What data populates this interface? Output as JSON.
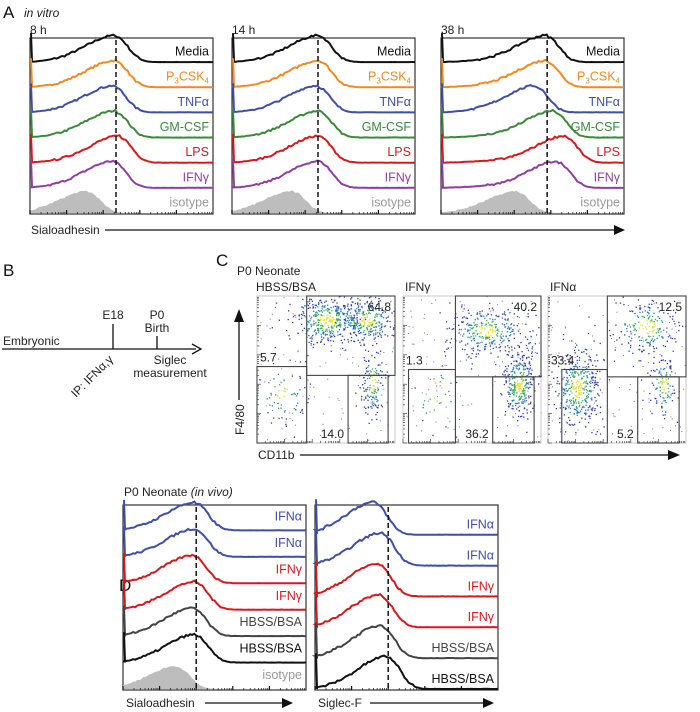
{
  "panels": {
    "A": "A",
    "B": "B",
    "C": "C",
    "D": "D"
  },
  "panel_a": {
    "subtitle": "in vitro",
    "x_axis_label": "Sialoadhesin",
    "time_points": [
      "8 h",
      "14 h",
      "38 h"
    ],
    "conditions": [
      {
        "name": "Media",
        "color": "#111111",
        "label": "Media"
      },
      {
        "name": "P3CSK4",
        "color": "#f08a24",
        "label_main": "P",
        "label_sub1": "3",
        "label_mid": "CSK",
        "label_sub2": "4"
      },
      {
        "name": "TNFα",
        "color": "#3f4fa8",
        "label": "TNFα"
      },
      {
        "name": "GM-CSF",
        "color": "#3a8a3a",
        "label": "GM-CSF"
      },
      {
        "name": "LPS",
        "color": "#d7191c",
        "label": "LPS"
      },
      {
        "name": "IFNγ",
        "color": "#8e3fa0",
        "label": "IFNγ"
      },
      {
        "name": "isotype",
        "color": "#bdbdbd",
        "label": "isotype"
      }
    ]
  },
  "panel_b": {
    "start_label": "Embryonic",
    "e18": "E18",
    "p0": "P0",
    "birth": "Birth",
    "treatment": "IP: IFNα,γ",
    "measure1": "Siglec",
    "measure2": "measurement"
  },
  "panel_c": {
    "title": "P0 Neonate",
    "y_label": "F4/80",
    "x_label": "CD11b",
    "plots": [
      {
        "condition": "HBSS/BSA",
        "color": "#111111",
        "gate_high": "64.8",
        "gate_low_left": "5.7",
        "gate_low_right": "14.0"
      },
      {
        "condition": "IFNγ",
        "color": "#d7191c",
        "gate_high": "40.2",
        "gate_low_left": "1.3",
        "gate_low_right": "36.2"
      },
      {
        "condition": "IFNα",
        "color": "#3f4fa8",
        "gate_high": "12.5",
        "gate_low_left": "33.4",
        "gate_low_right": "5.2"
      }
    ]
  },
  "panel_d": {
    "title": "P0 Neonate",
    "title_italic": "(in vivo)",
    "x_labels": [
      "Sialoadhesin",
      "Siglec-F"
    ],
    "rows": [
      {
        "label": "IFNα",
        "color": "#3f4fa8"
      },
      {
        "label": "IFNα",
        "color": "#3f4fa8"
      },
      {
        "label": "IFNγ",
        "color": "#d7191c"
      },
      {
        "label": "IFNγ",
        "color": "#d7191c"
      },
      {
        "label": "HBSS/BSA",
        "color": "#444444"
      },
      {
        "label": "HBSS/BSA",
        "color": "#111111"
      },
      {
        "label": "isotype",
        "color": "#bdbdbd"
      }
    ]
  },
  "chart_data": [
    {
      "type": "histogram",
      "title": "8 h",
      "xlabel": "Sialoadhesin",
      "x_scale": "log",
      "x_range_decades": [
        0,
        5
      ],
      "marker_decade": 2.35,
      "series": [
        {
          "name": "Media",
          "peak": 2.35
        },
        {
          "name": "P3CSK4",
          "peak": 2.35
        },
        {
          "name": "TNFα",
          "peak": 2.3
        },
        {
          "name": "GM-CSF",
          "peak": 2.35
        },
        {
          "name": "LPS",
          "peak": 2.45
        },
        {
          "name": "IFNγ",
          "peak": 2.3
        },
        {
          "name": "isotype",
          "peak": 1.6
        }
      ]
    },
    {
      "type": "histogram",
      "title": "14 h",
      "xlabel": "Sialoadhesin",
      "x_scale": "log",
      "x_range_decades": [
        0,
        5
      ],
      "marker_decade": 2.35,
      "series": [
        {
          "name": "Media",
          "peak": 2.4
        },
        {
          "name": "P3CSK4",
          "peak": 2.4
        },
        {
          "name": "TNFα",
          "peak": 2.35
        },
        {
          "name": "GM-CSF",
          "peak": 2.4
        },
        {
          "name": "LPS",
          "peak": 2.4
        },
        {
          "name": "IFNγ",
          "peak": 2.4
        },
        {
          "name": "isotype",
          "peak": 1.7
        }
      ]
    },
    {
      "type": "histogram",
      "title": "38 h",
      "xlabel": "Sialoadhesin",
      "x_scale": "log",
      "x_range_decades": [
        0,
        5
      ],
      "marker_decade": 2.9,
      "series": [
        {
          "name": "Media",
          "peak": 2.9
        },
        {
          "name": "P3CSK4",
          "peak": 2.9
        },
        {
          "name": "TNFα",
          "peak": 2.6
        },
        {
          "name": "GM-CSF",
          "peak": 3.1
        },
        {
          "name": "LPS",
          "peak": 3.4
        },
        {
          "name": "IFNγ",
          "peak": 3.2
        },
        {
          "name": "isotype",
          "peak": 2.1
        }
      ]
    },
    {
      "type": "histogram",
      "title": "P0 Neonate (in vivo)",
      "xlabel": "Sialoadhesin",
      "x_scale": "log",
      "x_range_decades": [
        0,
        5
      ],
      "marker_decade": 2.0,
      "series": [
        {
          "name": "IFNα",
          "peak": 2.0
        },
        {
          "name": "IFNα",
          "peak": 2.0
        },
        {
          "name": "IFNγ",
          "peak": 1.95
        },
        {
          "name": "IFNγ",
          "peak": 2.0
        },
        {
          "name": "HBSS/BSA",
          "peak": 1.95
        },
        {
          "name": "HBSS/BSA",
          "peak": 2.0
        },
        {
          "name": "isotype",
          "peak": 1.5
        }
      ]
    },
    {
      "type": "histogram",
      "title": "P0 Neonate (in vivo)",
      "xlabel": "Siglec-F",
      "x_scale": "log",
      "x_range_decades": [
        0,
        5
      ],
      "marker_decade": 2.0,
      "series": [
        {
          "name": "IFNα",
          "peak": 1.65
        },
        {
          "name": "IFNα",
          "peak": 1.85
        },
        {
          "name": "IFNγ",
          "peak": 1.75
        },
        {
          "name": "IFNγ",
          "peak": 1.8
        },
        {
          "name": "HBSS/BSA",
          "peak": 1.85
        },
        {
          "name": "HBSS/BSA",
          "peak": 2.0
        }
      ]
    },
    {
      "type": "scatter",
      "title": "P0 Neonate",
      "xlabel": "CD11b",
      "ylabel": "F4/80",
      "plots": [
        {
          "name": "HBSS/BSA",
          "gates": {
            "F4/80 high": 64.8,
            "F4/80 low CD11b low": 5.7,
            "F4/80 low CD11b high": 14.0
          },
          "clusters": [
            {
              "cx": 2.2,
              "cy": 3.6,
              "sx": 0.55,
              "sy": 0.35,
              "n": 380
            },
            {
              "cx": 3.4,
              "cy": 3.6,
              "sx": 0.45,
              "sy": 0.35,
              "n": 260
            },
            {
              "cx": 3.6,
              "cy": 1.8,
              "sx": 0.18,
              "sy": 0.5,
              "n": 140
            },
            {
              "cx": 0.8,
              "cy": 1.5,
              "sx": 0.4,
              "sy": 0.5,
              "n": 70
            }
          ]
        },
        {
          "name": "IFNγ",
          "gates": {
            "F4/80 high": 40.2,
            "F4/80 low CD11b low": 1.3,
            "F4/80 low CD11b high": 36.2
          },
          "clusters": [
            {
              "cx": 2.6,
              "cy": 3.3,
              "sx": 0.6,
              "sy": 0.35,
              "n": 300
            },
            {
              "cx": 3.6,
              "cy": 1.7,
              "sx": 0.25,
              "sy": 0.5,
              "n": 320
            },
            {
              "cx": 1.0,
              "cy": 1.5,
              "sx": 0.45,
              "sy": 0.6,
              "n": 30
            }
          ]
        },
        {
          "name": "IFNα",
          "gates": {
            "F4/80 high": 12.5,
            "F4/80 low CD11b low": 33.4,
            "F4/80 low CD11b high": 5.2
          },
          "clusters": [
            {
              "cx": 0.9,
              "cy": 1.6,
              "sx": 0.35,
              "sy": 0.6,
              "n": 380
            },
            {
              "cx": 3.1,
              "cy": 3.4,
              "sx": 0.55,
              "sy": 0.4,
              "n": 200
            },
            {
              "cx": 3.6,
              "cy": 1.7,
              "sx": 0.2,
              "sy": 0.45,
              "n": 110
            }
          ]
        }
      ]
    }
  ]
}
